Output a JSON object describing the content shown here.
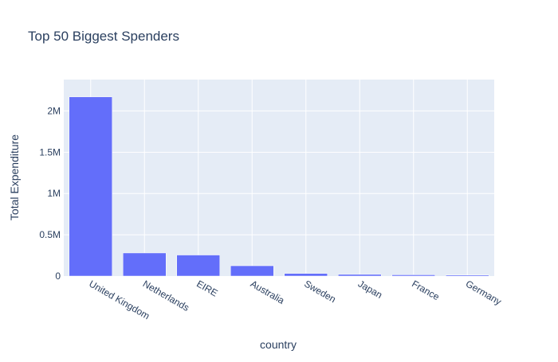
{
  "chart_data": {
    "type": "bar",
    "title": "Top 50 Biggest Spenders",
    "xlabel": "country",
    "ylabel": "Total Expenditure",
    "categories": [
      "United Kingdom",
      "Netherlands",
      "EIRE",
      "Australia",
      "Sweden",
      "Japan",
      "France",
      "Germany"
    ],
    "values": [
      2170000,
      280000,
      255000,
      125000,
      32000,
      20000,
      15000,
      12000
    ],
    "ylim": [
      0,
      2380000
    ],
    "yticks": [
      0,
      500000,
      1000000,
      1500000,
      2000000
    ],
    "ytick_labels": [
      "0",
      "0.5M",
      "1M",
      "1.5M",
      "2M"
    ],
    "grid": true,
    "legend": "none",
    "colors": {
      "bar": "#636efa",
      "plot_bg": "#e5ecf6",
      "grid": "#ffffff",
      "text": "#2a3f5f"
    }
  }
}
